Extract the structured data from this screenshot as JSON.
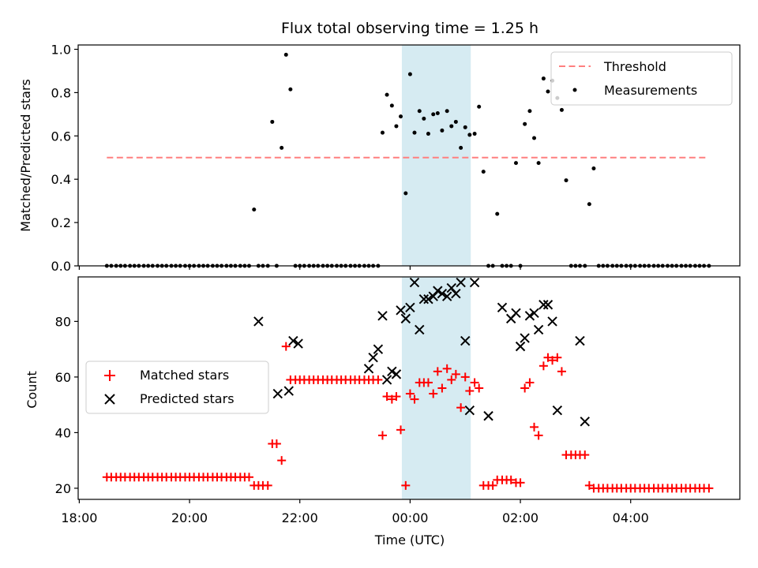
{
  "chart_data": [
    {
      "type": "scatter",
      "title": "Flux total observing time = 1.25 h",
      "xlabel": "",
      "ylabel": "Matched/Predicted stars",
      "x_unit": "hours since 18:00 UTC",
      "xlim": [
        17.98,
        29.98
      ],
      "ylim": [
        0,
        1.02
      ],
      "yticks": [
        0,
        0.2,
        0.4,
        0.6,
        0.8,
        1.0
      ],
      "ytick_labels": [
        "0.0",
        "0.2",
        "0.4",
        "0.6",
        "0.8",
        "1.0"
      ],
      "highlight_span": [
        23.85,
        25.1
      ],
      "legend": {
        "placement": "upper right",
        "entries": [
          "Threshold",
          "Measurements"
        ]
      },
      "series": [
        {
          "name": "Threshold",
          "kind": "dashed-line",
          "color": "#ff7f7f",
          "x": [
            18.5,
            29.4
          ],
          "y": [
            0.5,
            0.5
          ]
        },
        {
          "name": "Measurements",
          "kind": "dot",
          "color": "#000000",
          "x": [
            18.5,
            18.58,
            18.67,
            18.75,
            18.83,
            18.92,
            19.0,
            19.08,
            19.17,
            19.25,
            19.33,
            19.42,
            19.5,
            19.58,
            19.67,
            19.75,
            19.83,
            19.92,
            20.0,
            20.08,
            20.17,
            20.25,
            20.33,
            20.42,
            20.5,
            20.58,
            20.67,
            20.75,
            20.83,
            20.92,
            21.0,
            21.08,
            21.17,
            21.25,
            21.33,
            21.42,
            21.5,
            21.58,
            21.67,
            21.75,
            21.83,
            21.92,
            22.0,
            22.08,
            22.17,
            22.25,
            22.33,
            22.42,
            22.5,
            22.58,
            22.67,
            22.75,
            22.83,
            22.92,
            23.0,
            23.08,
            23.17,
            23.25,
            23.33,
            23.42,
            23.5,
            23.58,
            23.67,
            23.75,
            23.83,
            23.92,
            24.0,
            24.08,
            24.17,
            24.25,
            24.33,
            24.42,
            24.5,
            24.58,
            24.67,
            24.75,
            24.83,
            24.92,
            25.0,
            25.08,
            25.17,
            25.25,
            25.33,
            25.42,
            25.5,
            25.58,
            25.67,
            25.75,
            25.83,
            25.92,
            26.0,
            26.08,
            26.17,
            26.25,
            26.33,
            26.42,
            26.5,
            26.58,
            26.67,
            26.75,
            26.83,
            26.92,
            27.0,
            27.08,
            27.17,
            27.25,
            27.33,
            27.42,
            27.5,
            27.58,
            27.67,
            27.75,
            27.83,
            27.92,
            28.0,
            28.08,
            28.17,
            28.25,
            28.33,
            28.42,
            28.5,
            28.58,
            28.67,
            28.75,
            28.83,
            28.92,
            29.0,
            29.08,
            29.17,
            29.25,
            29.33,
            29.42
          ],
          "y": [
            0,
            0,
            0,
            0,
            0,
            0,
            0,
            0,
            0,
            0,
            0,
            0,
            0,
            0,
            0,
            0,
            0,
            0,
            0,
            0,
            0,
            0,
            0,
            0,
            0,
            0,
            0,
            0,
            0,
            0,
            0,
            0,
            0.26,
            0,
            0,
            0,
            0.665,
            0,
            0.545,
            0.975,
            0.815,
            0,
            0,
            0,
            0,
            0,
            0,
            0,
            0,
            0,
            0,
            0,
            0,
            0,
            0,
            0,
            0,
            0,
            0,
            0,
            0.615,
            0.79,
            0.74,
            0.645,
            0.69,
            0.335,
            0.885,
            0.615,
            0.715,
            0.68,
            0.61,
            0.7,
            0.705,
            0.625,
            0.715,
            0.645,
            0.665,
            0.545,
            0.64,
            0.605,
            0.61,
            0.735,
            0.435,
            0,
            0,
            0.24,
            0,
            0,
            0,
            0.475,
            0,
            0.655,
            0.715,
            0.59,
            0.475,
            0.865,
            0.805,
            0.855,
            0.775,
            0.72,
            0.395,
            0,
            0,
            0,
            0,
            0.285,
            0.45,
            0,
            0,
            0,
            0,
            0,
            0,
            0,
            0,
            0,
            0,
            0,
            0,
            0,
            0,
            0,
            0,
            0,
            0,
            0,
            0,
            0,
            0,
            0,
            0,
            0
          ]
        }
      ]
    },
    {
      "type": "scatter",
      "title": "",
      "xlabel": "Time (UTC)",
      "ylabel": "Count",
      "x_unit": "hours since 18:00 UTC",
      "xlim": [
        17.98,
        29.98
      ],
      "ylim": [
        16,
        96
      ],
      "yticks": [
        20,
        40,
        60,
        80
      ],
      "ytick_labels": [
        "20",
        "40",
        "60",
        "80"
      ],
      "xticks": [
        18,
        20,
        22,
        24,
        26,
        28
      ],
      "xtick_labels": [
        "18:00",
        "20:00",
        "22:00",
        "00:00",
        "02:00",
        "04:00"
      ],
      "highlight_span": [
        23.85,
        25.1
      ],
      "legend": {
        "placement": "center left",
        "entries": [
          "Matched stars",
          "Predicted stars"
        ]
      },
      "series": [
        {
          "name": "Matched stars",
          "marker": "+",
          "color": "#ff0000",
          "x": [
            18.5,
            18.58,
            18.67,
            18.75,
            18.83,
            18.92,
            19.0,
            19.08,
            19.17,
            19.25,
            19.33,
            19.42,
            19.5,
            19.58,
            19.67,
            19.75,
            19.83,
            19.92,
            20.0,
            20.08,
            20.17,
            20.25,
            20.33,
            20.42,
            20.5,
            20.58,
            20.67,
            20.75,
            20.83,
            20.92,
            21.0,
            21.08,
            21.17,
            21.25,
            21.33,
            21.42,
            21.5,
            21.58,
            21.67,
            21.75,
            21.83,
            21.92,
            22.0,
            22.08,
            22.17,
            22.25,
            22.33,
            22.42,
            22.5,
            22.58,
            22.67,
            22.75,
            22.83,
            22.92,
            23.0,
            23.08,
            23.17,
            23.25,
            23.33,
            23.42,
            23.5,
            23.58,
            23.67,
            23.75,
            23.83,
            23.92,
            24.0,
            24.08,
            24.17,
            24.25,
            24.33,
            24.42,
            24.5,
            24.58,
            24.67,
            24.75,
            24.83,
            24.92,
            25.0,
            25.08,
            25.17,
            25.25,
            25.33,
            25.42,
            25.5,
            25.58,
            25.67,
            25.75,
            25.83,
            25.92,
            26.0,
            26.08,
            26.17,
            26.25,
            26.33,
            26.42,
            26.5,
            26.58,
            26.67,
            26.75,
            26.83,
            26.92,
            27.0,
            27.08,
            27.17,
            27.25,
            27.33,
            27.42,
            27.5,
            27.58,
            27.67,
            27.75,
            27.83,
            27.92,
            28.0,
            28.08,
            28.17,
            28.25,
            28.33,
            28.42,
            28.5,
            28.58,
            28.67,
            28.75,
            28.83,
            28.92,
            29.0,
            29.08,
            29.17,
            29.25,
            29.33,
            29.42
          ],
          "y": [
            24,
            24,
            24,
            24,
            24,
            24,
            24,
            24,
            24,
            24,
            24,
            24,
            24,
            24,
            24,
            24,
            24,
            24,
            24,
            24,
            24,
            24,
            24,
            24,
            24,
            24,
            24,
            24,
            24,
            24,
            24,
            24,
            21,
            21,
            21,
            21,
            36,
            36,
            30,
            71,
            59,
            59,
            59,
            59,
            59,
            59,
            59,
            59,
            59,
            59,
            59,
            59,
            59,
            59,
            59,
            59,
            59,
            59,
            59,
            59,
            39,
            53,
            52,
            53,
            41,
            21,
            54,
            52,
            58,
            58,
            58,
            54,
            62,
            56,
            63,
            59,
            61,
            49,
            60,
            55,
            58,
            56,
            21,
            21,
            21,
            23,
            23,
            23,
            23,
            22,
            22,
            56,
            58,
            42,
            39,
            64,
            67,
            66,
            67,
            62,
            32,
            32,
            32,
            32,
            32,
            21,
            20,
            20,
            20,
            20,
            20,
            20,
            20,
            20,
            20,
            20,
            20,
            20,
            20,
            20,
            20,
            20,
            20,
            20,
            20,
            20,
            20,
            20,
            20,
            20,
            20,
            20
          ]
        },
        {
          "name": "Predicted stars",
          "marker": "x",
          "color": "#000000",
          "x": [
            21.25,
            21.6,
            21.8,
            21.88,
            21.97,
            23.25,
            23.33,
            23.42,
            23.5,
            23.58,
            23.67,
            23.75,
            23.83,
            23.92,
            24.0,
            24.08,
            24.17,
            24.25,
            24.33,
            24.42,
            24.5,
            24.58,
            24.67,
            24.75,
            24.83,
            24.92,
            25.0,
            25.08,
            25.17,
            25.42,
            25.67,
            25.83,
            25.92,
            26.0,
            26.08,
            26.17,
            26.25,
            26.33,
            26.42,
            26.5,
            26.58,
            26.67,
            27.08,
            27.17
          ],
          "y": [
            80,
            54,
            55,
            73,
            72,
            63,
            67,
            70,
            82,
            59,
            62,
            61,
            84,
            81,
            85,
            94,
            77,
            88,
            88,
            89,
            91,
            90,
            89,
            92,
            90,
            94,
            73,
            48,
            94,
            46,
            85,
            81,
            83,
            71,
            74,
            82,
            83,
            77,
            86,
            86,
            80,
            48,
            73,
            44
          ]
        }
      ]
    }
  ]
}
